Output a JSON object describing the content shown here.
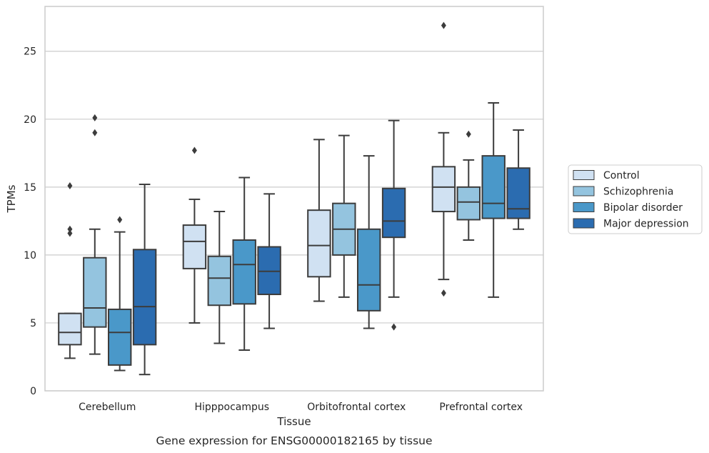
{
  "caption": "Gene expression for ENSG00000182165 by tissue",
  "chart_data": {
    "type": "box",
    "xlabel": "Tissue",
    "ylabel": "TPMs",
    "ylim": [
      0,
      28.3
    ],
    "yticks": [
      0,
      5,
      10,
      15,
      20,
      25
    ],
    "grid": "horizontal",
    "legend_position": "right",
    "categories": [
      "Cerebellum",
      "Hipppocampus",
      "Orbitofrontal cortex",
      "Prefrontal cortex"
    ],
    "series": [
      {
        "name": "Control",
        "color": "#d0e1f2",
        "boxes": [
          {
            "whislo": 2.4,
            "q1": 3.4,
            "med": 4.3,
            "q3": 5.7,
            "whishi": 5.7,
            "fliers": [
              11.6,
              11.9,
              15.1
            ]
          },
          {
            "whislo": 5.0,
            "q1": 9.0,
            "med": 11.0,
            "q3": 12.2,
            "whishi": 14.1,
            "fliers": [
              17.7
            ]
          },
          {
            "whislo": 6.6,
            "q1": 8.4,
            "med": 10.7,
            "q3": 13.3,
            "whishi": 18.5,
            "fliers": []
          },
          {
            "whislo": 8.2,
            "q1": 13.2,
            "med": 15.0,
            "q3": 16.5,
            "whishi": 19.0,
            "fliers": [
              7.2,
              26.9
            ]
          }
        ]
      },
      {
        "name": "Schizophrenia",
        "color": "#94c4df",
        "boxes": [
          {
            "whislo": 2.7,
            "q1": 4.7,
            "med": 6.1,
            "q3": 9.8,
            "whishi": 11.9,
            "fliers": [
              19.0,
              20.1
            ]
          },
          {
            "whislo": 3.5,
            "q1": 6.3,
            "med": 8.3,
            "q3": 9.9,
            "whishi": 13.2,
            "fliers": []
          },
          {
            "whislo": 6.9,
            "q1": 10.0,
            "med": 11.9,
            "q3": 13.8,
            "whishi": 18.8,
            "fliers": []
          },
          {
            "whislo": 11.1,
            "q1": 12.6,
            "med": 13.9,
            "q3": 15.0,
            "whishi": 17.0,
            "fliers": [
              18.9
            ]
          }
        ]
      },
      {
        "name": "Bipolar disorder",
        "color": "#4a98c9",
        "boxes": [
          {
            "whislo": 1.5,
            "q1": 1.9,
            "med": 4.3,
            "q3": 6.0,
            "whishi": 11.7,
            "fliers": [
              12.6
            ]
          },
          {
            "whislo": 3.0,
            "q1": 6.4,
            "med": 9.3,
            "q3": 11.1,
            "whishi": 15.7,
            "fliers": []
          },
          {
            "whislo": 4.6,
            "q1": 5.9,
            "med": 7.8,
            "q3": 11.9,
            "whishi": 17.3,
            "fliers": []
          },
          {
            "whislo": 6.9,
            "q1": 12.7,
            "med": 13.8,
            "q3": 17.3,
            "whishi": 21.2,
            "fliers": []
          }
        ]
      },
      {
        "name": "Major depression",
        "color": "#2b6cb0",
        "boxes": [
          {
            "whislo": 1.2,
            "q1": 3.4,
            "med": 6.2,
            "q3": 10.4,
            "whishi": 15.2,
            "fliers": []
          },
          {
            "whislo": 4.6,
            "q1": 7.1,
            "med": 8.8,
            "q3": 10.6,
            "whishi": 14.5,
            "fliers": []
          },
          {
            "whislo": 6.9,
            "q1": 11.3,
            "med": 12.5,
            "q3": 14.9,
            "whishi": 19.9,
            "fliers": [
              4.7
            ]
          },
          {
            "whislo": 11.9,
            "q1": 12.7,
            "med": 13.4,
            "q3": 16.4,
            "whishi": 19.2,
            "fliers": []
          }
        ]
      }
    ]
  }
}
